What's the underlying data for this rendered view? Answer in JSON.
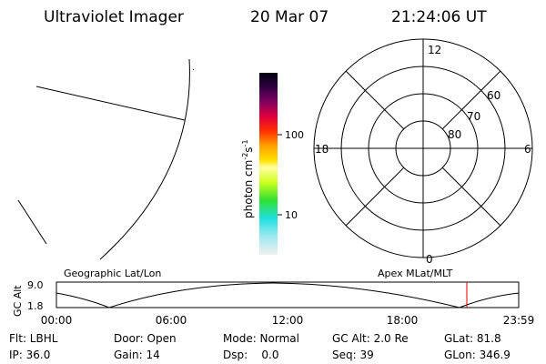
{
  "header": {
    "title": "Ultraviolet Imager",
    "date": "20 Mar 07",
    "time": "21:24:06 UT"
  },
  "colorbar": {
    "label": [
      "photon cm",
      "-2",
      "s",
      "-1"
    ],
    "ticks": [
      "100",
      "10"
    ]
  },
  "polar": {
    "mlt_labels": [
      "12",
      "18",
      "6",
      "0"
    ],
    "lat_labels": [
      "80",
      "70",
      "60"
    ]
  },
  "orbit": {
    "left_title": "Geographic Lat/Lon",
    "right_title": "Apex MLat/MLT",
    "ylabel": "GC Alt",
    "yticks": [
      "9.0",
      "1.8"
    ],
    "xticks": [
      "00:00",
      "06:00",
      "12:00",
      "18:00",
      "23:59"
    ]
  },
  "info": {
    "rows": [
      [
        "Flt: LBHL",
        "Door: Open",
        "Mode: Normal",
        "GC Alt: 2.0 Re",
        "GLat: 81.8"
      ],
      [
        "IP: 36.0",
        "Gain: 14",
        "Dsp:    0.0",
        "Seq: 39",
        "GLon: 346.9"
      ]
    ]
  }
}
